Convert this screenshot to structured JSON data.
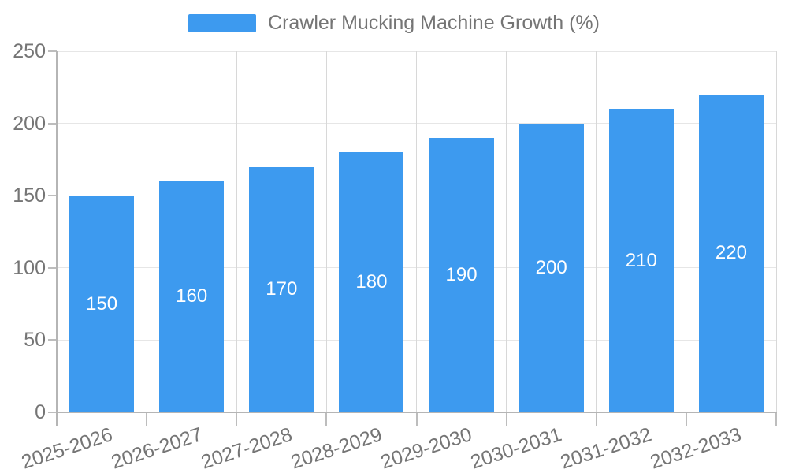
{
  "legend": {
    "label": "Crawler Mucking Machine Growth (%)"
  },
  "chart_data": {
    "type": "bar",
    "title": "Crawler Mucking Machine Growth (%)",
    "categories": [
      "2025-2026",
      "2026-2027",
      "2027-2028",
      "2028-2029",
      "2029-2030",
      "2030-2031",
      "2031-2032",
      "2032-2033"
    ],
    "series": [
      {
        "name": "Crawler Mucking Machine Growth (%)",
        "values": [
          150,
          160,
          170,
          180,
          190,
          200,
          210,
          220
        ]
      }
    ],
    "values": [
      150,
      160,
      170,
      180,
      190,
      200,
      210,
      220
    ],
    "value_labels": [
      150,
      160,
      170,
      180,
      190,
      200,
      210,
      220
    ],
    "value_label_position": "inside-center",
    "xlabel": "",
    "ylabel": "",
    "ylim": [
      0,
      250
    ],
    "yticks": [
      0,
      50,
      100,
      150,
      200,
      250
    ],
    "grid": true,
    "legend_position": "top",
    "colors": {
      "bar": "#3D9AEF",
      "value_label": "#FFFFFF",
      "axis_text": "#757575",
      "grid_horizontal": "#E6E6E6",
      "grid_vertical": "#D8D8D8",
      "axis_line": "#B5B5B5",
      "tick": "#BDBDBD",
      "background": "#FFFFFF"
    }
  }
}
